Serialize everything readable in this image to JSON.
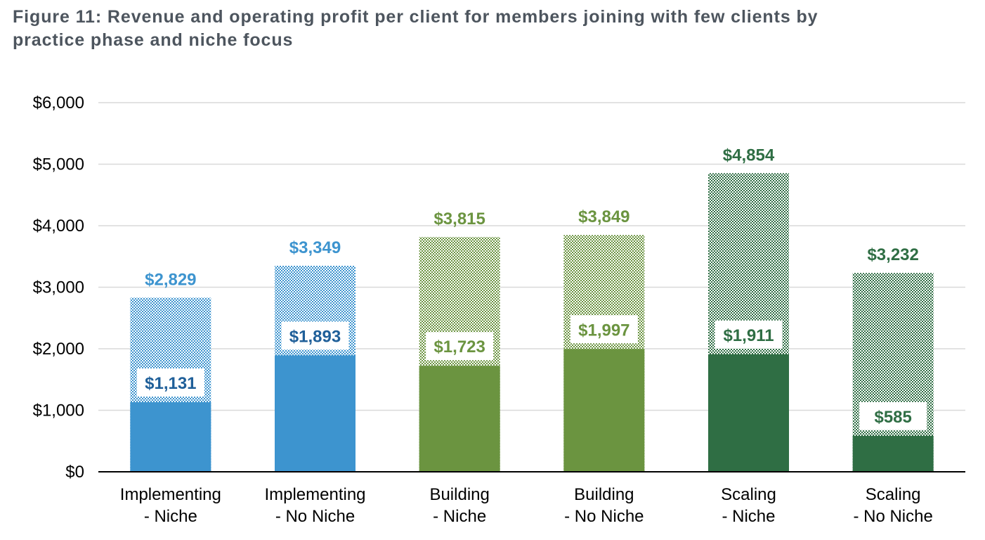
{
  "title": {
    "line1": "Figure 11: Revenue and operating profit per client for members joining with few clients by",
    "line2": "practice phase and niche focus"
  },
  "chart_data": {
    "type": "bar",
    "title": "Figure 11: Revenue and operating profit per client for members joining with few clients by practice phase and niche focus",
    "xlabel": "",
    "ylabel": "",
    "ylim": [
      0,
      6000
    ],
    "yticks": [
      "$0",
      "$1,000",
      "$2,000",
      "$3,000",
      "$4,000",
      "$5,000",
      "$6,000"
    ],
    "grid": true,
    "categories": [
      [
        "Implementing",
        "- Niche"
      ],
      [
        "Implementing",
        "- No Niche"
      ],
      [
        "Building",
        "- Niche"
      ],
      [
        "Building",
        "- No Niche"
      ],
      [
        "Scaling",
        "- Niche"
      ],
      [
        "Scaling",
        "- No Niche"
      ]
    ],
    "series": [
      {
        "values": [
          2829,
          3349,
          3815,
          3849,
          4854,
          3232
        ],
        "labels": [
          "$2,829",
          "$3,349",
          "$3,815",
          "$3,849",
          "$4,854",
          "$3,232"
        ],
        "style": "hatched"
      },
      {
        "values": [
          1131,
          1893,
          1723,
          1997,
          1911,
          585
        ],
        "labels": [
          "$1,131",
          "$1,893",
          "$1,723",
          "$1,997",
          "$1,911",
          "$585"
        ],
        "style": "solid"
      }
    ],
    "colors": {
      "bar": [
        "#3d94cf",
        "#3d94cf",
        "#6b9440",
        "#6b9440",
        "#2f6e44",
        "#2f6e44"
      ],
      "revenue_label": [
        "#3d94cf",
        "#3d94cf",
        "#6b9440",
        "#6b9440",
        "#2f6e44",
        "#2f6e44"
      ],
      "profit_label": [
        "#1f5f99",
        "#1f5f99",
        "#6b9440",
        "#6b9440",
        "#2f6e44",
        "#2f6e44"
      ],
      "grid": "#d9d9d9",
      "axis": "#000000"
    }
  }
}
